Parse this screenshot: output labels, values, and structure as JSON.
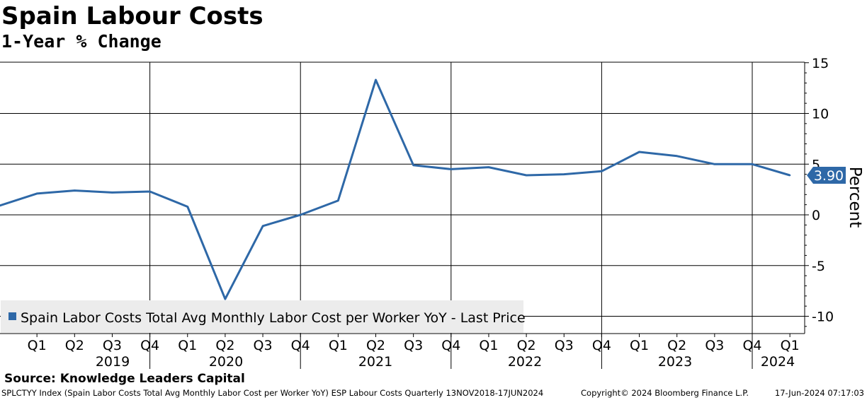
{
  "title": "Spain Labour Costs",
  "subtitle": "1-Year % Change",
  "source": "Source: Knowledge Leaders Capital",
  "footer": {
    "left": "SPLCTYY Index (Spain Labor Costs Total Avg Monthly Labor Cost per Worker YoY) ESP Labour Costs  Quarterly 13NOV2018-17JUN2024",
    "middle": "Copyright© 2024 Bloomberg Finance L.P.",
    "right": "17-Jun-2024 07:17:03"
  },
  "colors": {
    "series": "#2e68a7",
    "background": "#ffffff",
    "grid": "#000000",
    "legend_bg": "#ececec"
  },
  "chart_data": {
    "type": "line",
    "title": "Spain Labour Costs",
    "subtitle": "1-Year % Change",
    "ylabel": "Percent",
    "ylim": [
      -12,
      16
    ],
    "y_ticks": [
      15,
      10,
      5,
      0,
      -5,
      -10
    ],
    "grid": true,
    "legend_position": "bottom-left",
    "quarter_labels": [
      "Q1",
      "Q2",
      "Q3",
      "Q4",
      "Q1",
      "Q2",
      "Q3",
      "Q4",
      "Q1",
      "Q2",
      "Q3",
      "Q4",
      "Q1",
      "Q2",
      "Q3",
      "Q4",
      "Q1",
      "Q2",
      "Q3",
      "Q4",
      "Q1"
    ],
    "years": [
      "2019",
      "2020",
      "2021",
      "2022",
      "2023",
      "2024"
    ],
    "last_value_label": "3.90",
    "series": [
      {
        "name": "Spain Labor Costs Total Avg Monthly Labor Cost per Worker YoY - Last Price",
        "x": [
          "2018Q4",
          "2019Q1",
          "2019Q2",
          "2019Q3",
          "2019Q4",
          "2020Q1",
          "2020Q2",
          "2020Q3",
          "2020Q4",
          "2021Q1",
          "2021Q2",
          "2021Q3",
          "2021Q4",
          "2022Q1",
          "2022Q2",
          "2022Q3",
          "2022Q4",
          "2023Q1",
          "2023Q2",
          "2023Q3",
          "2023Q4",
          "2024Q1"
        ],
        "values": [
          0.9,
          2.1,
          2.4,
          2.2,
          2.3,
          0.8,
          -8.3,
          -1.1,
          0.0,
          1.4,
          13.3,
          4.9,
          4.5,
          4.7,
          3.9,
          4.0,
          4.3,
          6.2,
          5.8,
          5.0,
          5.0,
          3.9
        ]
      }
    ]
  }
}
